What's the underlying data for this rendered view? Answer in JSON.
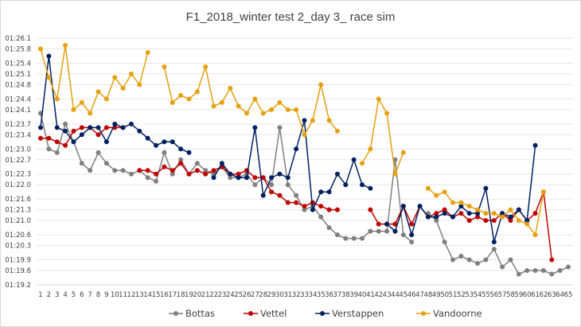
{
  "chart_data": {
    "type": "line",
    "title": "F1_2018_winter test 2_day 3_ race sim",
    "xlabel": "",
    "ylabel": "",
    "x": [
      1,
      2,
      3,
      4,
      5,
      6,
      7,
      8,
      9,
      10,
      11,
      12,
      13,
      14,
      15,
      16,
      17,
      18,
      19,
      20,
      21,
      22,
      23,
      24,
      25,
      26,
      27,
      28,
      29,
      30,
      31,
      32,
      33,
      34,
      35,
      36,
      37,
      38,
      39,
      40,
      41,
      42,
      43,
      44,
      45,
      46,
      47,
      48,
      49,
      50,
      51,
      52,
      53,
      54,
      55,
      56,
      57,
      58,
      59,
      60,
      61,
      62,
      63,
      64,
      65
    ],
    "ylim": [
      79.2,
      86.1
    ],
    "y_tick_values": [
      86.1,
      85.8,
      85.4,
      85.1,
      84.8,
      84.4,
      84.1,
      83.7,
      83.4,
      83.0,
      82.7,
      82.3,
      82.0,
      81.6,
      81.3,
      81.0,
      80.6,
      80.3,
      79.9,
      79.6,
      79.2
    ],
    "y_tick_labels": [
      "01:26.1",
      "01:25.8",
      "01:25.4",
      "01:25.1",
      "01:24.8",
      "01:24.4",
      "01:24.1",
      "01:23.7",
      "01:23.4",
      "01:23.0",
      "01:22.7",
      "01:22.3",
      "01:22.0",
      "01:21.6",
      "01:21.3",
      "01:21.0",
      "01:20.6",
      "01:20.3",
      "01:19.9",
      "01:19.6",
      "01:19.2"
    ],
    "grid": true,
    "legend_position": "bottom",
    "series": [
      {
        "name": "Bottas",
        "color": "#7f7f7f",
        "values": [
          84.0,
          83.0,
          82.9,
          83.7,
          83.2,
          82.6,
          82.4,
          82.9,
          82.6,
          82.4,
          82.4,
          82.3,
          82.4,
          82.2,
          82.1,
          82.9,
          82.3,
          82.7,
          82.3,
          82.6,
          82.4,
          82.3,
          82.5,
          82.2,
          82.2,
          82.3,
          82.0,
          82.2,
          82.0,
          83.6,
          82.0,
          81.7,
          81.3,
          81.4,
          81.1,
          80.8,
          80.6,
          80.5,
          80.5,
          80.5,
          80.7,
          80.7,
          80.7,
          82.7,
          80.6,
          80.4,
          null,
          81.2,
          81.0,
          80.4,
          79.9,
          80.0,
          79.9,
          79.8,
          79.9,
          80.2,
          79.7,
          79.9,
          79.5,
          79.6,
          79.6,
          79.6,
          79.5,
          79.6,
          79.7
        ]
      },
      {
        "name": "Vettel",
        "color": "#c00000",
        "values": [
          83.3,
          83.3,
          83.2,
          83.1,
          83.5,
          83.6,
          83.6,
          83.4,
          83.6,
          83.6,
          83.6,
          null,
          82.4,
          82.4,
          82.3,
          82.5,
          82.4,
          82.6,
          82.3,
          82.4,
          82.3,
          82.4,
          82.5,
          82.3,
          82.3,
          82.4,
          82.2,
          82.2,
          81.8,
          81.7,
          81.5,
          81.5,
          81.4,
          81.5,
          81.4,
          81.3,
          81.3,
          null,
          null,
          null,
          81.3,
          80.9,
          80.9,
          80.9,
          81.4,
          80.9,
          81.4,
          81.1,
          81.2,
          81.3,
          81.1,
          81.2,
          81.0,
          81.1,
          81.0,
          81.0,
          81.2,
          81.0,
          81.3,
          81.0,
          81.2,
          81.8,
          79.9,
          null,
          null
        ]
      },
      {
        "name": "Verstappen",
        "color": "#002060",
        "values": [
          83.6,
          85.6,
          83.6,
          83.5,
          83.2,
          83.4,
          83.6,
          83.6,
          83.2,
          83.7,
          83.6,
          83.7,
          83.5,
          83.3,
          83.1,
          83.2,
          83.2,
          83.0,
          82.9,
          null,
          null,
          82.2,
          82.6,
          82.3,
          82.2,
          82.2,
          83.6,
          81.7,
          82.2,
          82.3,
          82.2,
          83.0,
          83.8,
          81.3,
          81.8,
          81.8,
          82.3,
          82.0,
          82.7,
          82.0,
          81.9,
          null,
          80.9,
          80.7,
          81.4,
          80.6,
          81.4,
          81.1,
          81.1,
          81.2,
          81.1,
          81.4,
          81.2,
          81.2,
          81.9,
          80.4,
          81.2,
          81.1,
          81.3,
          81.0,
          83.1,
          null,
          null,
          null,
          null
        ]
      },
      {
        "name": "Vandoorne",
        "color": "#e5a00d",
        "values": [
          85.8,
          85.0,
          84.4,
          85.9,
          84.1,
          84.3,
          84.0,
          84.6,
          84.4,
          85.0,
          84.7,
          85.1,
          84.8,
          85.7,
          null,
          85.3,
          84.3,
          84.5,
          84.4,
          84.6,
          85.3,
          84.2,
          84.3,
          84.7,
          84.2,
          84.0,
          84.4,
          84.0,
          84.1,
          84.3,
          84.1,
          84.1,
          83.4,
          83.8,
          84.8,
          83.8,
          83.5,
          null,
          null,
          82.6,
          83.0,
          84.4,
          84.0,
          82.3,
          82.9,
          null,
          null,
          81.9,
          81.7,
          81.8,
          81.5,
          81.5,
          81.4,
          81.3,
          81.2,
          81.2,
          81.1,
          81.3,
          81.0,
          80.9,
          80.6,
          81.8,
          null,
          null,
          null
        ]
      }
    ]
  }
}
